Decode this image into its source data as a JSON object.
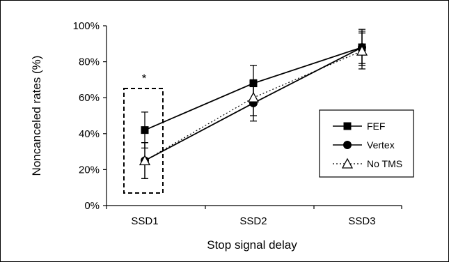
{
  "chart_data": {
    "type": "line",
    "categories": [
      "SSD1",
      "SSD2",
      "SSD3"
    ],
    "xlabel": "Stop signal delay",
    "ylabel": "Noncanceled rates (%)",
    "ylim": [
      0,
      100
    ],
    "yticks": [
      0,
      20,
      40,
      60,
      80,
      100
    ],
    "ytick_labels": [
      "0%",
      "20%",
      "40%",
      "60%",
      "80%",
      "100%"
    ],
    "grid": false,
    "legend_position": "right",
    "series": [
      {
        "name": "FEF",
        "marker": "square-filled",
        "line": "solid",
        "values": [
          42,
          68,
          88
        ],
        "error": [
          10,
          10,
          9
        ]
      },
      {
        "name": "Vertex",
        "marker": "circle-filled",
        "line": "solid",
        "values": [
          25,
          57,
          88
        ],
        "error": [
          10,
          10,
          10
        ]
      },
      {
        "name": "No TMS",
        "marker": "triangle-open",
        "line": "dotted",
        "values": [
          25,
          60,
          86
        ],
        "error": [
          10,
          10,
          10
        ]
      }
    ],
    "annotations": [
      {
        "text": "*",
        "category": "SSD1",
        "highlight_box": "dashed"
      }
    ]
  }
}
